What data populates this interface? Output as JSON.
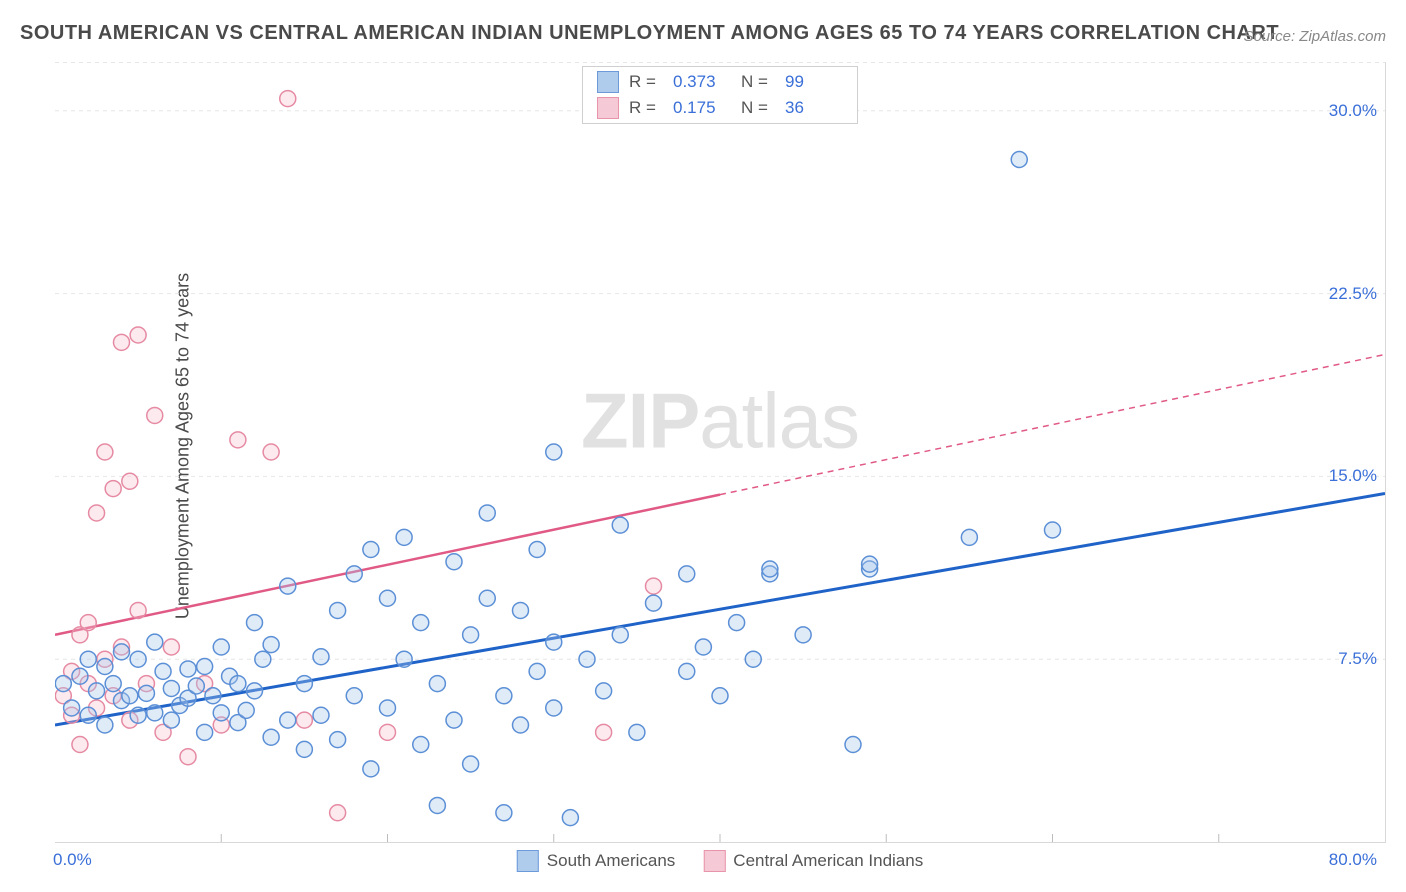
{
  "title": "SOUTH AMERICAN VS CENTRAL AMERICAN INDIAN UNEMPLOYMENT AMONG AGES 65 TO 74 YEARS CORRELATION CHART",
  "source": "Source: ZipAtlas.com",
  "ylabel": "Unemployment Among Ages 65 to 74 years",
  "watermark_bold": "ZIP",
  "watermark_rest": "atlas",
  "chart": {
    "type": "scatter",
    "xlim": [
      0,
      80
    ],
    "ylim": [
      0,
      32
    ],
    "xtick_left": "0.0%",
    "xtick_right": "80.0%",
    "yticks": [
      7.5,
      15.0,
      22.5,
      30.0
    ],
    "ytick_labels": [
      "7.5%",
      "15.0%",
      "22.5%",
      "30.0%"
    ],
    "xticks_minor": [
      10,
      20,
      30,
      40,
      50,
      60,
      70
    ],
    "grid_color": "#e6e6e6",
    "background_color": "#ffffff",
    "marker_radius": 8,
    "marker_stroke_width": 1.5,
    "marker_fill_opacity": 0.35,
    "series": [
      {
        "name": "South Americans",
        "color_stroke": "#5b8fd6",
        "color_fill": "#a7c7ec",
        "R": "0.373",
        "N": "99",
        "trend": {
          "x1": 0,
          "y1": 4.8,
          "x2": 80,
          "y2": 14.3,
          "color": "#1f63c9",
          "width": 3,
          "dash": ""
        },
        "points": [
          [
            0.5,
            6.5
          ],
          [
            1,
            5.5
          ],
          [
            1.5,
            6.8
          ],
          [
            2,
            5.2
          ],
          [
            2,
            7.5
          ],
          [
            2.5,
            6.2
          ],
          [
            3,
            4.8
          ],
          [
            3,
            7.2
          ],
          [
            3.5,
            6.5
          ],
          [
            4,
            5.8
          ],
          [
            4,
            7.8
          ],
          [
            4.5,
            6.0
          ],
          [
            5,
            5.2
          ],
          [
            5,
            7.5
          ],
          [
            5.5,
            6.1
          ],
          [
            6,
            5.3
          ],
          [
            6,
            8.2
          ],
          [
            6.5,
            7.0
          ],
          [
            7,
            5.0
          ],
          [
            7,
            6.3
          ],
          [
            7.5,
            5.6
          ],
          [
            8,
            7.1
          ],
          [
            8,
            5.9
          ],
          [
            8.5,
            6.4
          ],
          [
            9,
            4.5
          ],
          [
            9,
            7.2
          ],
          [
            9.5,
            6.0
          ],
          [
            10,
            5.3
          ],
          [
            10,
            8.0
          ],
          [
            10.5,
            6.8
          ],
          [
            11,
            4.9
          ],
          [
            11,
            6.5
          ],
          [
            11.5,
            5.4
          ],
          [
            12,
            9.0
          ],
          [
            12,
            6.2
          ],
          [
            12.5,
            7.5
          ],
          [
            13,
            4.3
          ],
          [
            13,
            8.1
          ],
          [
            14,
            5.0
          ],
          [
            14,
            10.5
          ],
          [
            15,
            6.5
          ],
          [
            15,
            3.8
          ],
          [
            16,
            7.6
          ],
          [
            16,
            5.2
          ],
          [
            17,
            9.5
          ],
          [
            17,
            4.2
          ],
          [
            18,
            11.0
          ],
          [
            18,
            6.0
          ],
          [
            19,
            12.0
          ],
          [
            19,
            3.0
          ],
          [
            20,
            10.0
          ],
          [
            20,
            5.5
          ],
          [
            21,
            7.5
          ],
          [
            21,
            12.5
          ],
          [
            22,
            4.0
          ],
          [
            22,
            9.0
          ],
          [
            23,
            6.5
          ],
          [
            23,
            1.5
          ],
          [
            24,
            11.5
          ],
          [
            24,
            5.0
          ],
          [
            25,
            8.5
          ],
          [
            25,
            3.2
          ],
          [
            26,
            10.0
          ],
          [
            26,
            13.5
          ],
          [
            27,
            6.0
          ],
          [
            27,
            1.2
          ],
          [
            28,
            9.5
          ],
          [
            28,
            4.8
          ],
          [
            29,
            12.0
          ],
          [
            29,
            7.0
          ],
          [
            30,
            8.2
          ],
          [
            30,
            16.0
          ],
          [
            30,
            5.5
          ],
          [
            31,
            1.0
          ],
          [
            32,
            7.5
          ],
          [
            33,
            6.2
          ],
          [
            34,
            13.0
          ],
          [
            34,
            8.5
          ],
          [
            35,
            4.5
          ],
          [
            36,
            9.8
          ],
          [
            38,
            7.0
          ],
          [
            38,
            11.0
          ],
          [
            39,
            8.0
          ],
          [
            40,
            6.0
          ],
          [
            41,
            9.0
          ],
          [
            42,
            7.5
          ],
          [
            43,
            11.0
          ],
          [
            43,
            11.2
          ],
          [
            45,
            8.5
          ],
          [
            48,
            4.0
          ],
          [
            49,
            11.2
          ],
          [
            49,
            11.4
          ],
          [
            55,
            12.5
          ],
          [
            58,
            28.0
          ],
          [
            60,
            12.8
          ]
        ]
      },
      {
        "name": "Central American Indians",
        "color_stroke": "#e68aa3",
        "color_fill": "#f6c4d2",
        "R": "0.175",
        "N": "36",
        "trend": {
          "x1": 0,
          "y1": 8.5,
          "x2": 80,
          "y2": 20.0,
          "color": "#e05a85",
          "width": 2.5,
          "dash": "",
          "solid_until_x": 40,
          "dash_after": "6,5"
        },
        "points": [
          [
            0.5,
            6.0
          ],
          [
            1,
            5.2
          ],
          [
            1,
            7.0
          ],
          [
            1.5,
            8.5
          ],
          [
            1.5,
            4.0
          ],
          [
            2,
            6.5
          ],
          [
            2,
            9.0
          ],
          [
            2.5,
            5.5
          ],
          [
            2.5,
            13.5
          ],
          [
            3,
            7.5
          ],
          [
            3,
            16.0
          ],
          [
            3.5,
            6.0
          ],
          [
            3.5,
            14.5
          ],
          [
            4,
            8.0
          ],
          [
            4,
            20.5
          ],
          [
            4.5,
            5.0
          ],
          [
            4.5,
            14.8
          ],
          [
            5,
            9.5
          ],
          [
            5,
            20.8
          ],
          [
            5.5,
            6.5
          ],
          [
            6,
            17.5
          ],
          [
            6.5,
            4.5
          ],
          [
            7,
            8.0
          ],
          [
            8,
            3.5
          ],
          [
            9,
            6.5
          ],
          [
            10,
            4.8
          ],
          [
            11,
            16.5
          ],
          [
            13,
            16.0
          ],
          [
            14,
            30.5
          ],
          [
            15,
            5.0
          ],
          [
            17,
            1.2
          ],
          [
            20,
            4.5
          ],
          [
            33,
            4.5
          ],
          [
            36,
            10.5
          ]
        ]
      }
    ]
  },
  "legend_top": {
    "R_label": "R =",
    "N_label": "N ="
  },
  "legend_bottom": {
    "items": [
      "South Americans",
      "Central American Indians"
    ]
  },
  "colors": {
    "title": "#4a4a4a",
    "axis_text": "#3a6fd8",
    "grid": "#e6e6e6"
  }
}
